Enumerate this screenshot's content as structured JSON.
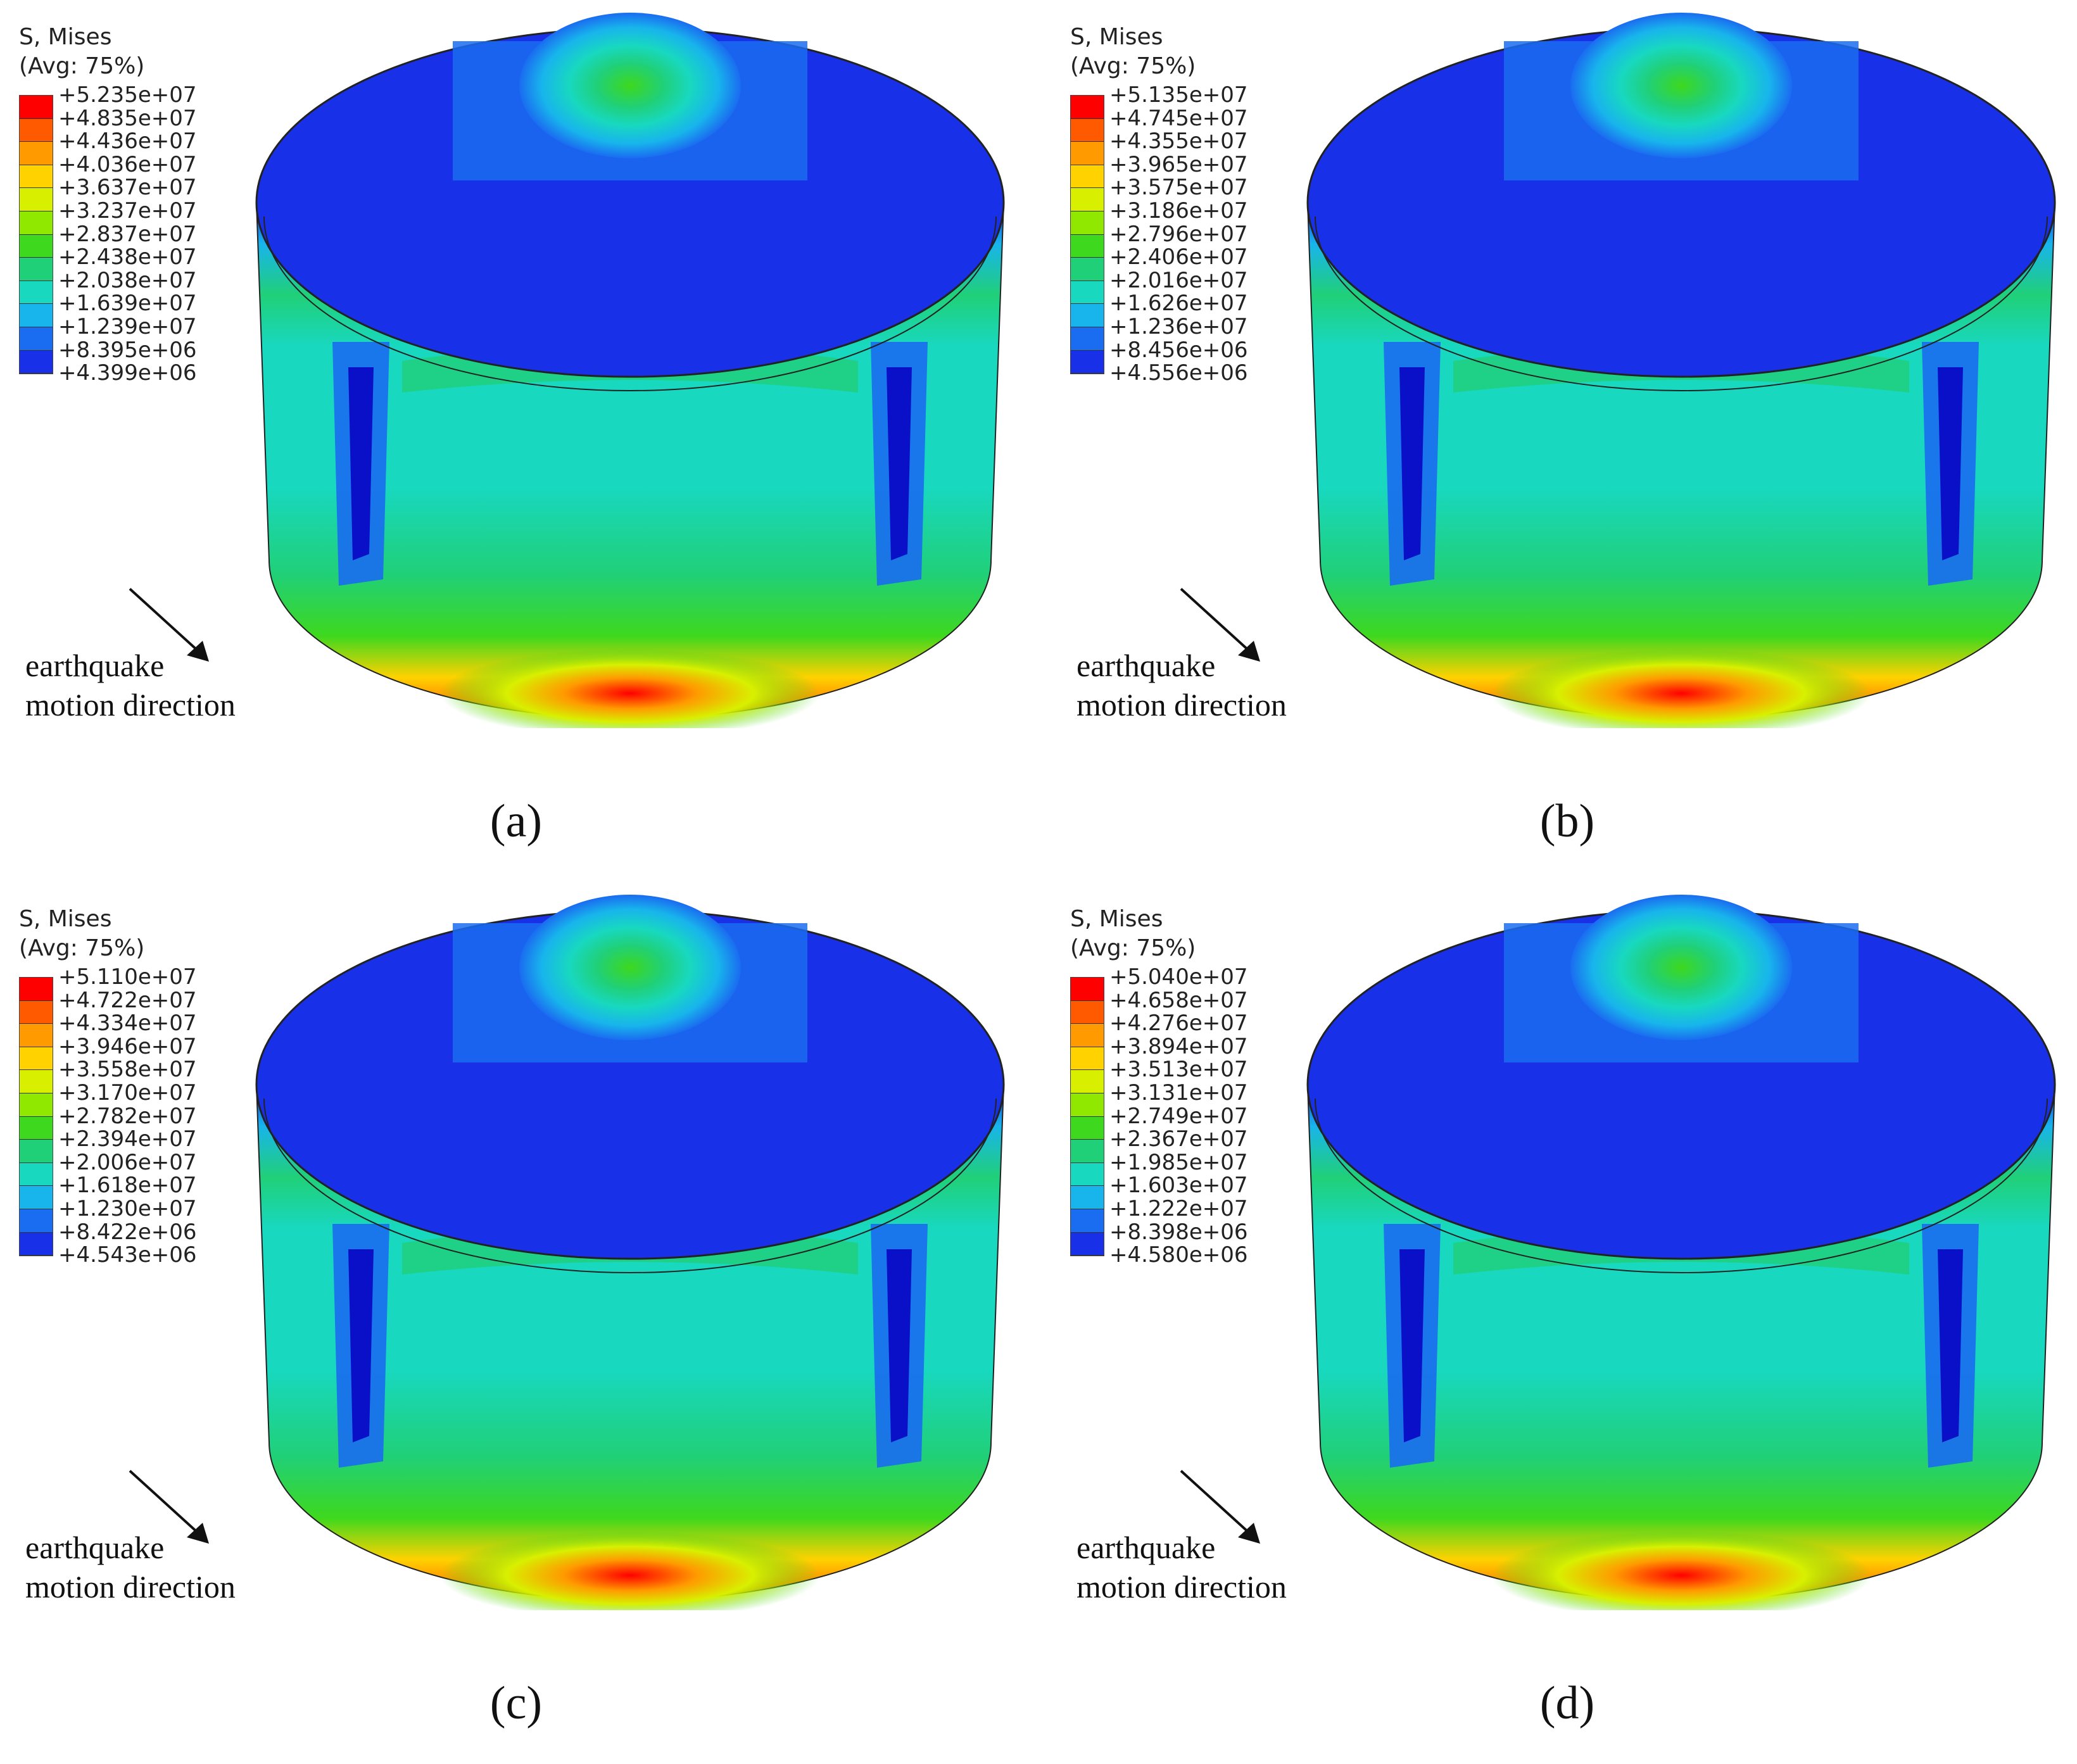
{
  "legend_title": "S, Mises",
  "legend_subtitle": "(Avg: 75%)",
  "annotation_line1": "earthquake",
  "annotation_line2": "motion direction",
  "colors": [
    "#ff0000",
    "#ff5a00",
    "#ff9a00",
    "#ffd200",
    "#d8f000",
    "#90e800",
    "#3ed81e",
    "#20d078",
    "#18d8c0",
    "#18b4ec",
    "#1a6cf0",
    "#1830e8",
    "#0a10c8"
  ],
  "panels": [
    {
      "label": "(a)",
      "values": [
        "+5.235e+07",
        "+4.835e+07",
        "+4.436e+07",
        "+4.036e+07",
        "+3.637e+07",
        "+3.237e+07",
        "+2.837e+07",
        "+2.438e+07",
        "+2.038e+07",
        "+1.639e+07",
        "+1.239e+07",
        "+8.395e+06",
        "+4.399e+06"
      ]
    },
    {
      "label": "(b)",
      "values": [
        "+5.135e+07",
        "+4.745e+07",
        "+4.355e+07",
        "+3.965e+07",
        "+3.575e+07",
        "+3.186e+07",
        "+2.796e+07",
        "+2.406e+07",
        "+2.016e+07",
        "+1.626e+07",
        "+1.236e+07",
        "+8.456e+06",
        "+4.556e+06"
      ]
    },
    {
      "label": "(c)",
      "values": [
        "+5.110e+07",
        "+4.722e+07",
        "+4.334e+07",
        "+3.946e+07",
        "+3.558e+07",
        "+3.170e+07",
        "+2.782e+07",
        "+2.394e+07",
        "+2.006e+07",
        "+1.618e+07",
        "+1.230e+07",
        "+8.422e+06",
        "+4.543e+06"
      ]
    },
    {
      "label": "(d)",
      "values": [
        "+5.040e+07",
        "+4.658e+07",
        "+4.276e+07",
        "+3.894e+07",
        "+3.513e+07",
        "+3.131e+07",
        "+2.749e+07",
        "+2.367e+07",
        "+1.985e+07",
        "+1.603e+07",
        "+1.222e+07",
        "+8.398e+06",
        "+4.580e+06"
      ]
    }
  ]
}
